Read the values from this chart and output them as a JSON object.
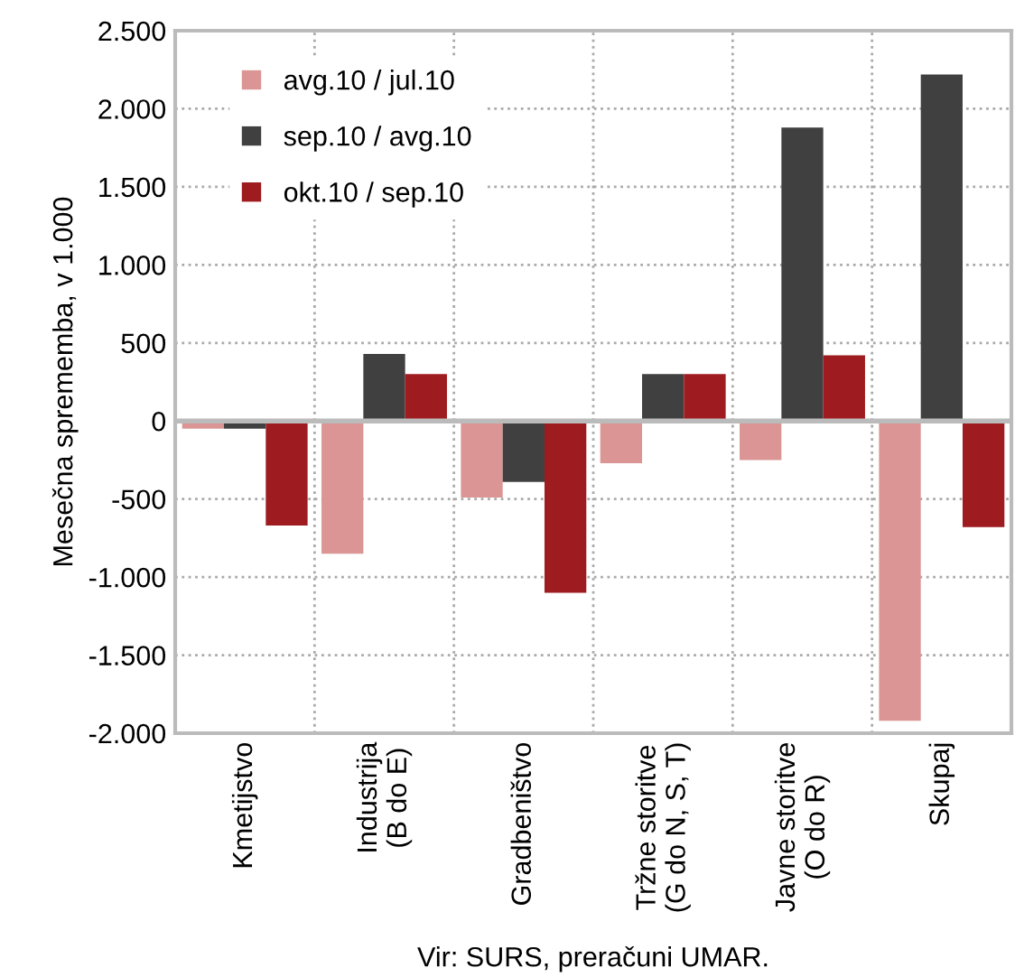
{
  "chart_data": {
    "type": "bar",
    "ylabel": "Mesečna sprememba, v 1.000",
    "categories": [
      "Kmetijstvo",
      "Industrija\n(B do E)",
      "Gradbeništvo",
      "Tržne storitve\n(G do N, S, T)",
      "Javne storitve\n(O do R)",
      "Skupaj"
    ],
    "series": [
      {
        "name": "avg.10 / jul.10",
        "color": "#da9594",
        "values": [
          -50,
          -850,
          -490,
          -270,
          -250,
          -1920
        ]
      },
      {
        "name": "sep.10 / avg.10",
        "color": "#404040",
        "values": [
          -50,
          430,
          -390,
          300,
          1880,
          2220
        ]
      },
      {
        "name": "okt.10 / sep.10",
        "color": "#9e1b20",
        "values": [
          -670,
          300,
          -1100,
          300,
          420,
          -680
        ]
      }
    ],
    "ylim": [
      -2000,
      2500
    ],
    "yticks": [
      {
        "value": -2000,
        "label": "-2.000"
      },
      {
        "value": -1500,
        "label": "-1.500"
      },
      {
        "value": -1000,
        "label": "-1.000"
      },
      {
        "value": -500,
        "label": "-500"
      },
      {
        "value": 0,
        "label": "0"
      },
      {
        "value": 500,
        "label": "500"
      },
      {
        "value": 1000,
        "label": "1.000"
      },
      {
        "value": 1500,
        "label": "1.500"
      },
      {
        "value": 2000,
        "label": "2.000"
      },
      {
        "value": 2500,
        "label": "2.500"
      }
    ],
    "grid": true,
    "legend": "top left",
    "annotations": [
      "Vir: SURS, preračuni UMAR."
    ]
  }
}
